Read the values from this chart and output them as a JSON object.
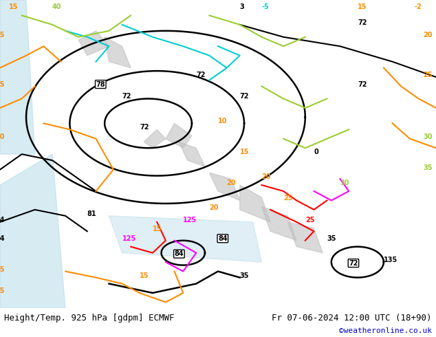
{
  "title_left": "Height/Temp. 925 hPa [gdpm] ECMWF",
  "title_right": "Fr 07-06-2024 12:00 UTC (18+90)",
  "watermark": "©weatheronline.co.uk",
  "bg_color": "#ffffff",
  "label_color": "#000000",
  "watermark_color": "#0000cc",
  "fig_width": 6.34,
  "fig_height": 4.9,
  "map_bg_color": "#90ee90",
  "label_fontsize": 9,
  "watermark_fontsize": 8,
  "bottom_bar_height": 0.085,
  "contour_colors": {
    "black": "#000000",
    "orange": "#ff8c00",
    "cyan": "#00ced1",
    "green_yellow": "#9acd32",
    "red": "#ff0000",
    "magenta": "#ff00ff",
    "gray": "#808080"
  }
}
